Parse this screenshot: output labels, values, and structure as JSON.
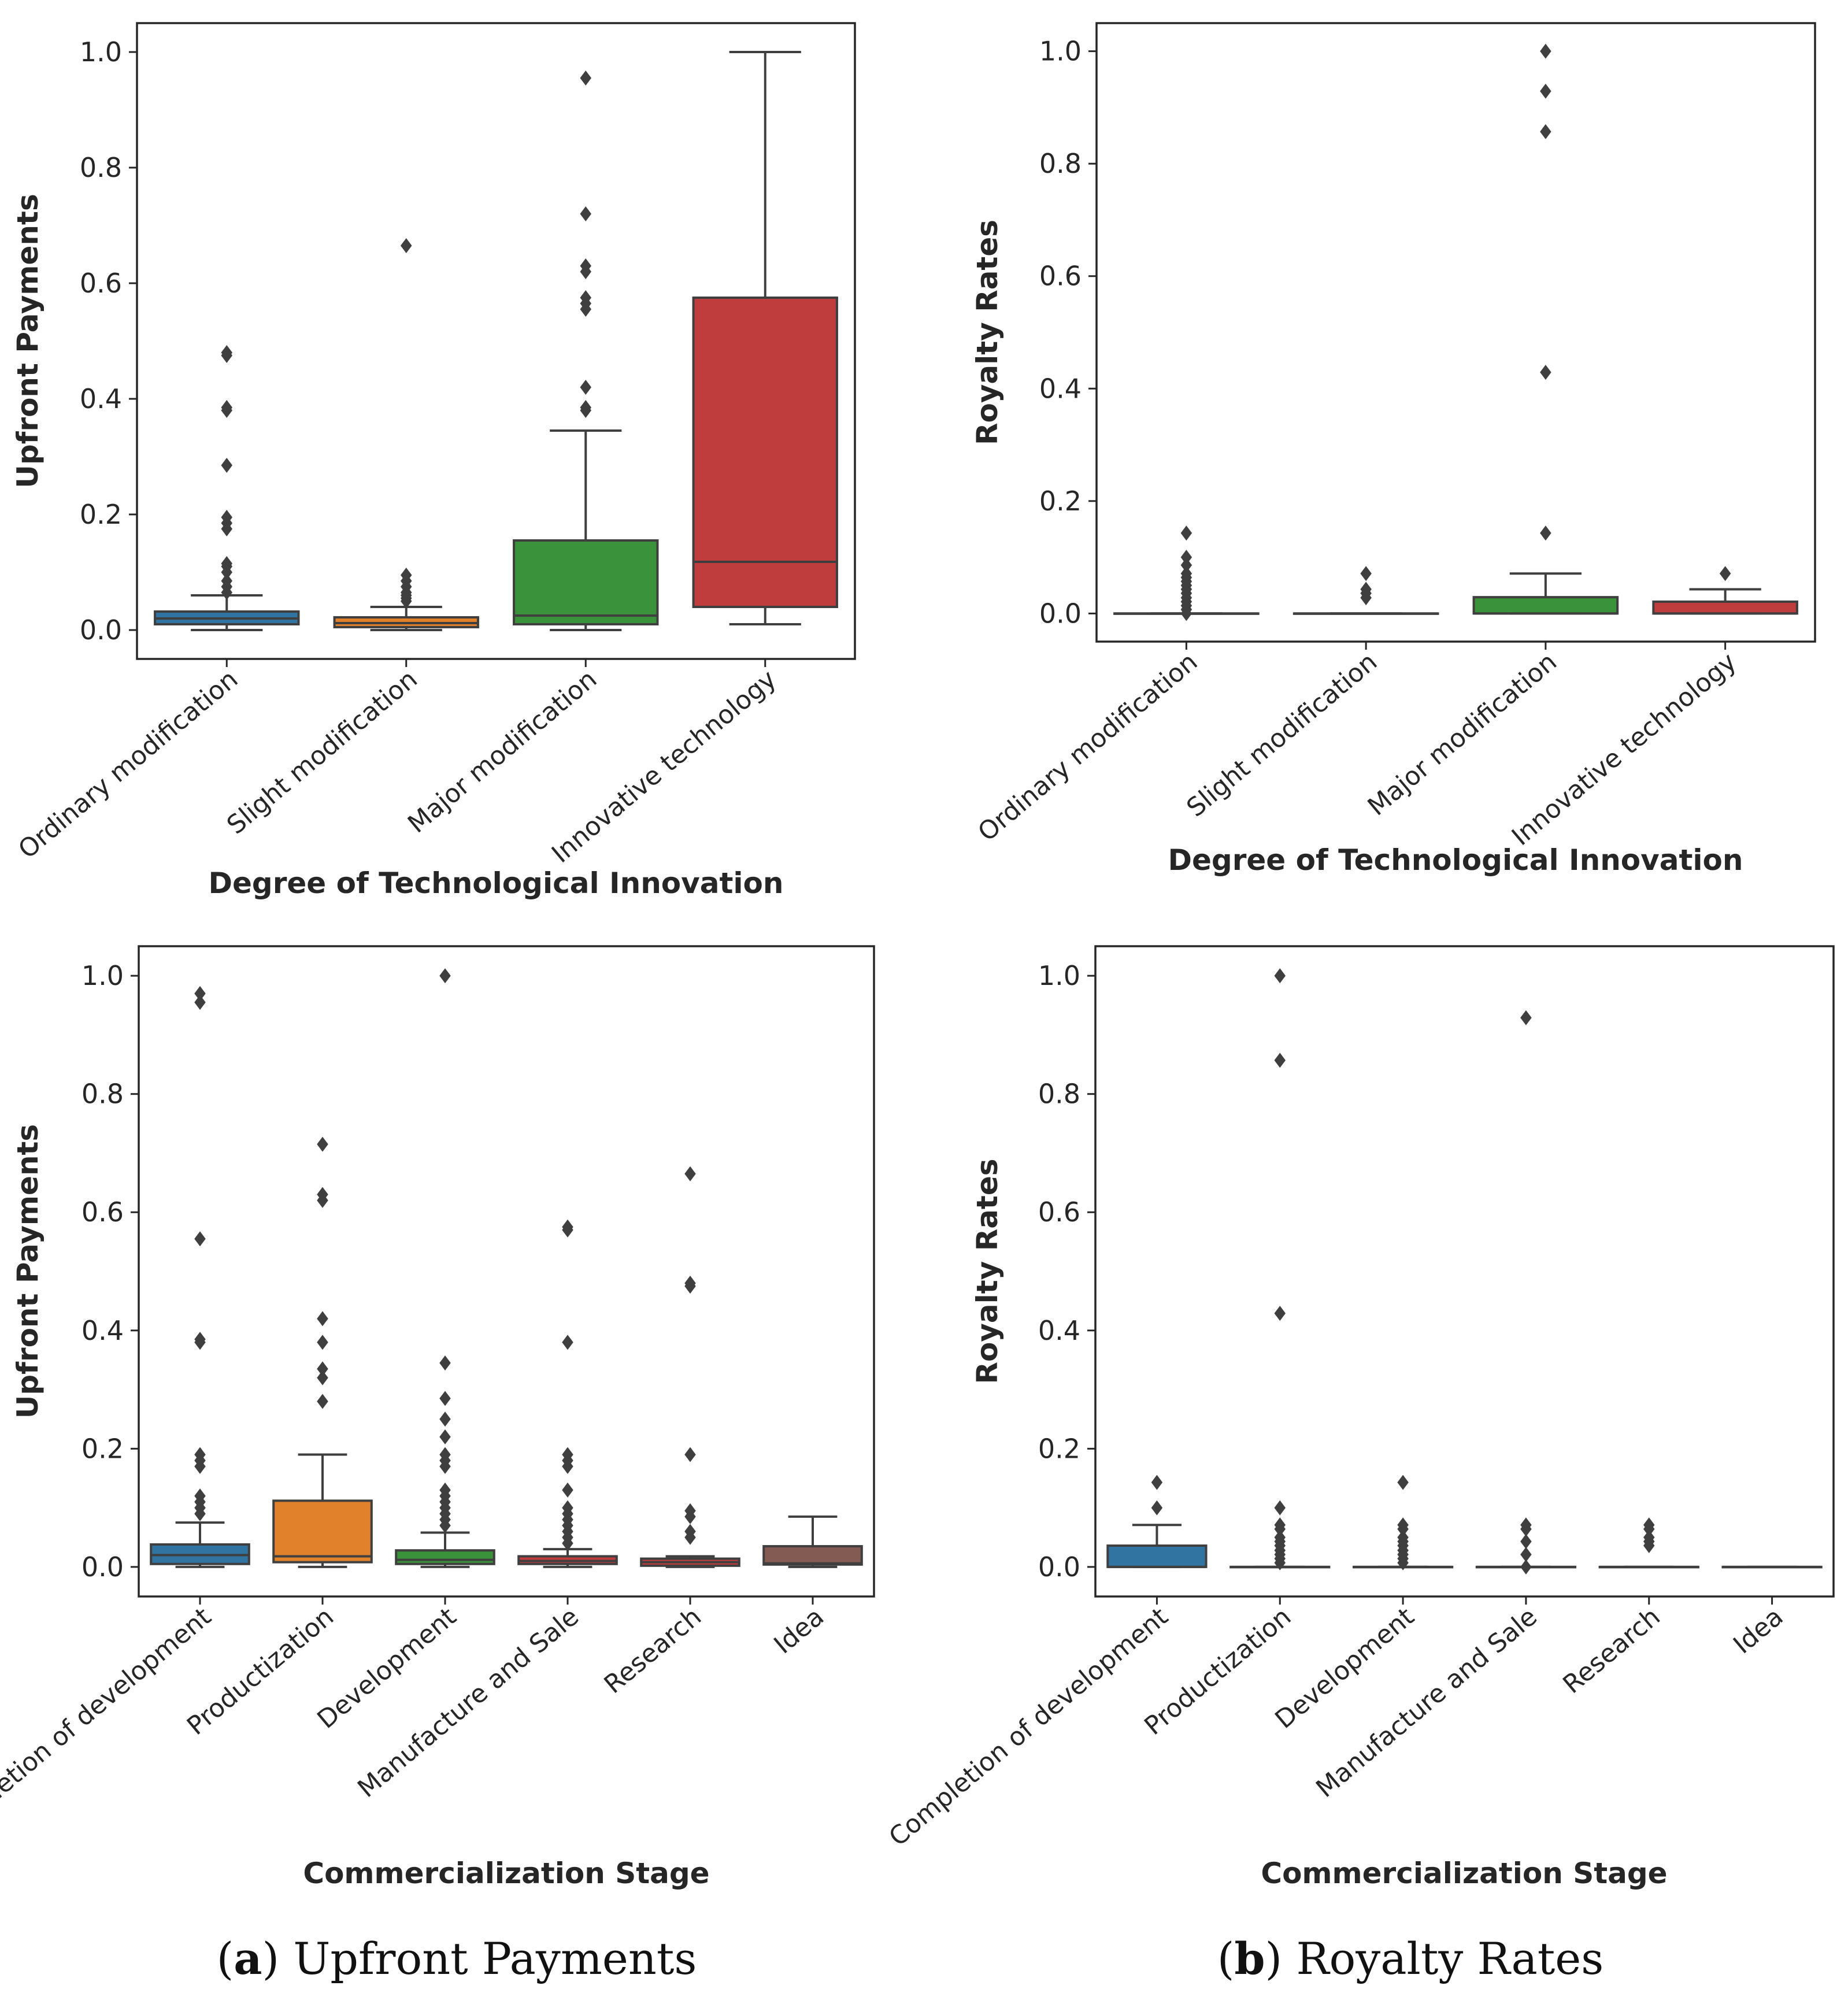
{
  "colors": {
    "blue": "#3274a1",
    "orange": "#e1812c",
    "green": "#3a923a",
    "red": "#c03d3e",
    "brown": "#845b53",
    "line": "#3f3f3f"
  },
  "captions": {
    "a_label": "a",
    "a_text": "Upfront Payments",
    "b_label": "b",
    "b_text": "Royalty Rates"
  },
  "chart_data": [
    {
      "id": "a-top",
      "type": "box",
      "xlabel": "Degree of Technological Innovation",
      "ylabel": "Upfront Payments",
      "ylim": [
        -0.05,
        1.05
      ],
      "yticks": [
        0.0,
        0.2,
        0.4,
        0.6,
        0.8,
        1.0
      ],
      "ytick_labels": [
        "0.0",
        "0.2",
        "0.4",
        "0.6",
        "0.8",
        "1.0"
      ],
      "categories": [
        "Ordinary modification",
        "Slight modification",
        "Major modification",
        "Innovative technology"
      ],
      "boxes": [
        {
          "q1": 0.01,
          "median": 0.02,
          "q3": 0.032,
          "whisker_low": 0.0,
          "whisker_high": 0.06,
          "color": "blue",
          "outliers": [
            0.065,
            0.075,
            0.085,
            0.1,
            0.11,
            0.115,
            0.175,
            0.185,
            0.195,
            0.285,
            0.38,
            0.385,
            0.475,
            0.48
          ]
        },
        {
          "q1": 0.005,
          "median": 0.012,
          "q3": 0.022,
          "whisker_low": 0.0,
          "whisker_high": 0.04,
          "color": "orange",
          "outliers": [
            0.05,
            0.055,
            0.06,
            0.065,
            0.075,
            0.085,
            0.095,
            0.665
          ]
        },
        {
          "q1": 0.01,
          "median": 0.025,
          "q3": 0.155,
          "whisker_low": 0.0,
          "whisker_high": 0.345,
          "color": "green",
          "outliers": [
            0.38,
            0.385,
            0.42,
            0.555,
            0.565,
            0.575,
            0.62,
            0.63,
            0.72,
            0.955
          ]
        },
        {
          "q1": 0.04,
          "median": 0.118,
          "q3": 0.575,
          "whisker_low": 0.01,
          "whisker_high": 1.0,
          "color": "red",
          "outliers": []
        }
      ]
    },
    {
      "id": "b-top",
      "type": "box",
      "xlabel": "Degree of Technological Innovation",
      "ylabel": "Royalty Rates",
      "ylim": [
        -0.05,
        1.05
      ],
      "yticks": [
        0.0,
        0.2,
        0.4,
        0.6,
        0.8,
        1.0
      ],
      "ytick_labels": [
        "0.0",
        "0.2",
        "0.4",
        "0.6",
        "0.8",
        "1.0"
      ],
      "categories": [
        "Ordinary modification",
        "Slight modification",
        "Major modification",
        "Innovative technology"
      ],
      "boxes": [
        {
          "q1": 0.0,
          "median": 0.0,
          "q3": 0.0,
          "whisker_low": 0.0,
          "whisker_high": 0.0,
          "color": "blue",
          "outliers": [
            0.0,
            0.007,
            0.014,
            0.021,
            0.028,
            0.036,
            0.043,
            0.05,
            0.057,
            0.064,
            0.071,
            0.086,
            0.1,
            0.143
          ]
        },
        {
          "q1": 0.0,
          "median": 0.0,
          "q3": 0.0,
          "whisker_low": 0.0,
          "whisker_high": 0.0,
          "color": "orange",
          "outliers": [
            0.028,
            0.036,
            0.043,
            0.071
          ]
        },
        {
          "q1": 0.0,
          "median": 0.0,
          "q3": 0.029,
          "whisker_low": 0.0,
          "whisker_high": 0.071,
          "color": "green",
          "outliers": [
            0.143,
            0.429,
            0.857,
            0.929,
            1.0
          ]
        },
        {
          "q1": 0.0,
          "median": 0.0,
          "q3": 0.021,
          "whisker_low": 0.0,
          "whisker_high": 0.043,
          "color": "red",
          "outliers": [
            0.071
          ]
        }
      ]
    },
    {
      "id": "a-bottom",
      "type": "box",
      "xlabel": "Commercialization Stage",
      "ylabel": "Upfront Payments",
      "ylim": [
        -0.05,
        1.05
      ],
      "yticks": [
        0.0,
        0.2,
        0.4,
        0.6,
        0.8,
        1.0
      ],
      "ytick_labels": [
        "0.0",
        "0.2",
        "0.4",
        "0.6",
        "0.8",
        "1.0"
      ],
      "categories": [
        "Completion of development",
        "Productization",
        "Development",
        "Manufacture and Sale",
        "Research",
        "Idea"
      ],
      "boxes": [
        {
          "q1": 0.005,
          "median": 0.02,
          "q3": 0.038,
          "whisker_low": 0.0,
          "whisker_high": 0.075,
          "color": "blue",
          "outliers": [
            0.09,
            0.1,
            0.11,
            0.12,
            0.17,
            0.18,
            0.19,
            0.38,
            0.385,
            0.555,
            0.955,
            0.97
          ]
        },
        {
          "q1": 0.008,
          "median": 0.018,
          "q3": 0.112,
          "whisker_low": 0.0,
          "whisker_high": 0.19,
          "color": "orange",
          "outliers": [
            0.28,
            0.32,
            0.335,
            0.38,
            0.42,
            0.62,
            0.63,
            0.715
          ]
        },
        {
          "q1": 0.005,
          "median": 0.012,
          "q3": 0.028,
          "whisker_low": 0.0,
          "whisker_high": 0.058,
          "color": "green",
          "outliers": [
            0.07,
            0.08,
            0.09,
            0.1,
            0.11,
            0.12,
            0.13,
            0.17,
            0.18,
            0.19,
            0.22,
            0.25,
            0.285,
            0.345,
            1.0
          ]
        },
        {
          "q1": 0.005,
          "median": 0.01,
          "q3": 0.018,
          "whisker_low": 0.0,
          "whisker_high": 0.03,
          "color": "red",
          "outliers": [
            0.04,
            0.05,
            0.06,
            0.07,
            0.08,
            0.09,
            0.1,
            0.13,
            0.17,
            0.18,
            0.19,
            0.38,
            0.57,
            0.575
          ]
        },
        {
          "q1": 0.002,
          "median": 0.008,
          "q3": 0.014,
          "whisker_low": 0.0,
          "whisker_high": 0.018,
          "color": "red",
          "outliers": [
            0.05,
            0.06,
            0.085,
            0.095,
            0.19,
            0.475,
            0.48,
            0.665
          ]
        },
        {
          "q1": 0.004,
          "median": 0.006,
          "q3": 0.035,
          "whisker_low": 0.0,
          "whisker_high": 0.085,
          "color": "brown",
          "outliers": []
        }
      ]
    },
    {
      "id": "b-bottom",
      "type": "box",
      "xlabel": "Commercialization Stage",
      "ylabel": "Royalty Rates",
      "ylim": [
        -0.05,
        1.05
      ],
      "yticks": [
        0.0,
        0.2,
        0.4,
        0.6,
        0.8,
        1.0
      ],
      "ytick_labels": [
        "0.0",
        "0.2",
        "0.4",
        "0.6",
        "0.8",
        "1.0"
      ],
      "categories": [
        "Completion of development",
        "Productization",
        "Development",
        "Manufacture and Sale",
        "Research",
        "Idea"
      ],
      "boxes": [
        {
          "q1": 0.0,
          "median": 0.0,
          "q3": 0.036,
          "whisker_low": 0.0,
          "whisker_high": 0.071,
          "color": "blue",
          "outliers": [
            0.1,
            0.143
          ]
        },
        {
          "q1": 0.0,
          "median": 0.0,
          "q3": 0.0,
          "whisker_low": 0.0,
          "whisker_high": 0.0,
          "color": "orange",
          "outliers": [
            0.007,
            0.014,
            0.021,
            0.028,
            0.036,
            0.043,
            0.05,
            0.064,
            0.071,
            0.1,
            0.429,
            0.857,
            1.0
          ]
        },
        {
          "q1": 0.0,
          "median": 0.0,
          "q3": 0.0,
          "whisker_low": 0.0,
          "whisker_high": 0.0,
          "color": "green",
          "outliers": [
            0.007,
            0.014,
            0.021,
            0.028,
            0.036,
            0.043,
            0.05,
            0.064,
            0.071,
            0.143
          ]
        },
        {
          "q1": 0.0,
          "median": 0.0,
          "q3": 0.0,
          "whisker_low": 0.0,
          "whisker_high": 0.0,
          "color": "red",
          "outliers": [
            0.0,
            0.021,
            0.043,
            0.064,
            0.071,
            0.929
          ]
        },
        {
          "q1": 0.0,
          "median": 0.0,
          "q3": 0.0,
          "whisker_low": 0.0,
          "whisker_high": 0.0,
          "color": "red",
          "outliers": [
            0.036,
            0.043,
            0.05,
            0.064,
            0.071
          ]
        },
        {
          "q1": 0.0,
          "median": 0.0,
          "q3": 0.0,
          "whisker_low": 0.0,
          "whisker_high": 0.0,
          "color": "brown",
          "outliers": []
        }
      ]
    }
  ]
}
